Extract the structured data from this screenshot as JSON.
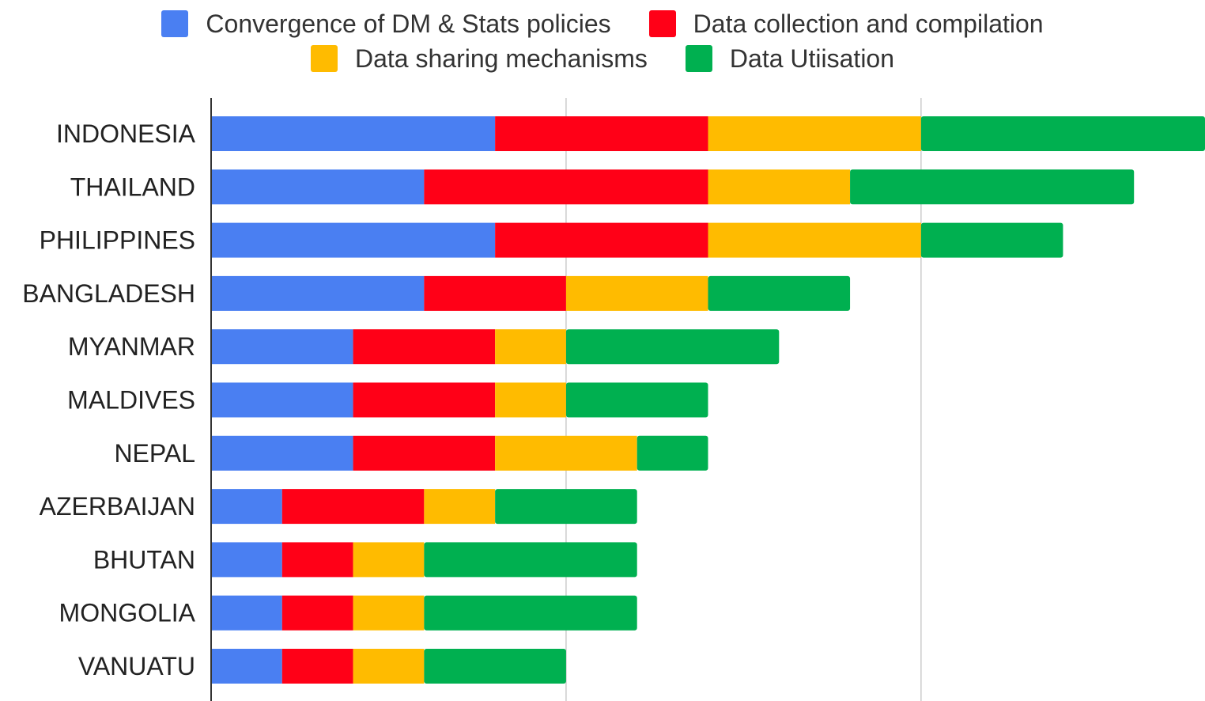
{
  "chart_data": {
    "type": "bar",
    "orientation": "horizontal",
    "stacked": true,
    "title": "",
    "xlabel": "",
    "ylabel": "",
    "xlim": [
      0,
      14
    ],
    "grid": true,
    "legend_position": "top",
    "categories": [
      "INDONESIA",
      "THAILAND",
      "PHILIPPINES",
      "BANGLADESH",
      "MYANMAR",
      "MALDIVES",
      "NEPAL",
      "AZERBAIJAN",
      "BHUTAN",
      "MONGOLIA",
      "VANUATU"
    ],
    "series": [
      {
        "name": "Convergence of DM & Stats policies",
        "color": "#4a7ff2",
        "values": [
          4,
          3,
          4,
          3,
          2,
          2,
          2,
          1,
          1,
          1,
          1
        ]
      },
      {
        "name": "Data collection and compilation",
        "color": "#ff0017",
        "values": [
          3,
          4,
          3,
          2,
          2,
          2,
          2,
          2,
          1,
          1,
          1
        ]
      },
      {
        "name": "Data sharing mechanisms",
        "color": "#ffbb00",
        "values": [
          3,
          2,
          3,
          2,
          1,
          1,
          2,
          1,
          1,
          1,
          1
        ]
      },
      {
        "name": "Data Utiisation",
        "color": "#00b050",
        "values": [
          4,
          4,
          2,
          2,
          3,
          2,
          1,
          2,
          3,
          3,
          2
        ]
      }
    ]
  }
}
